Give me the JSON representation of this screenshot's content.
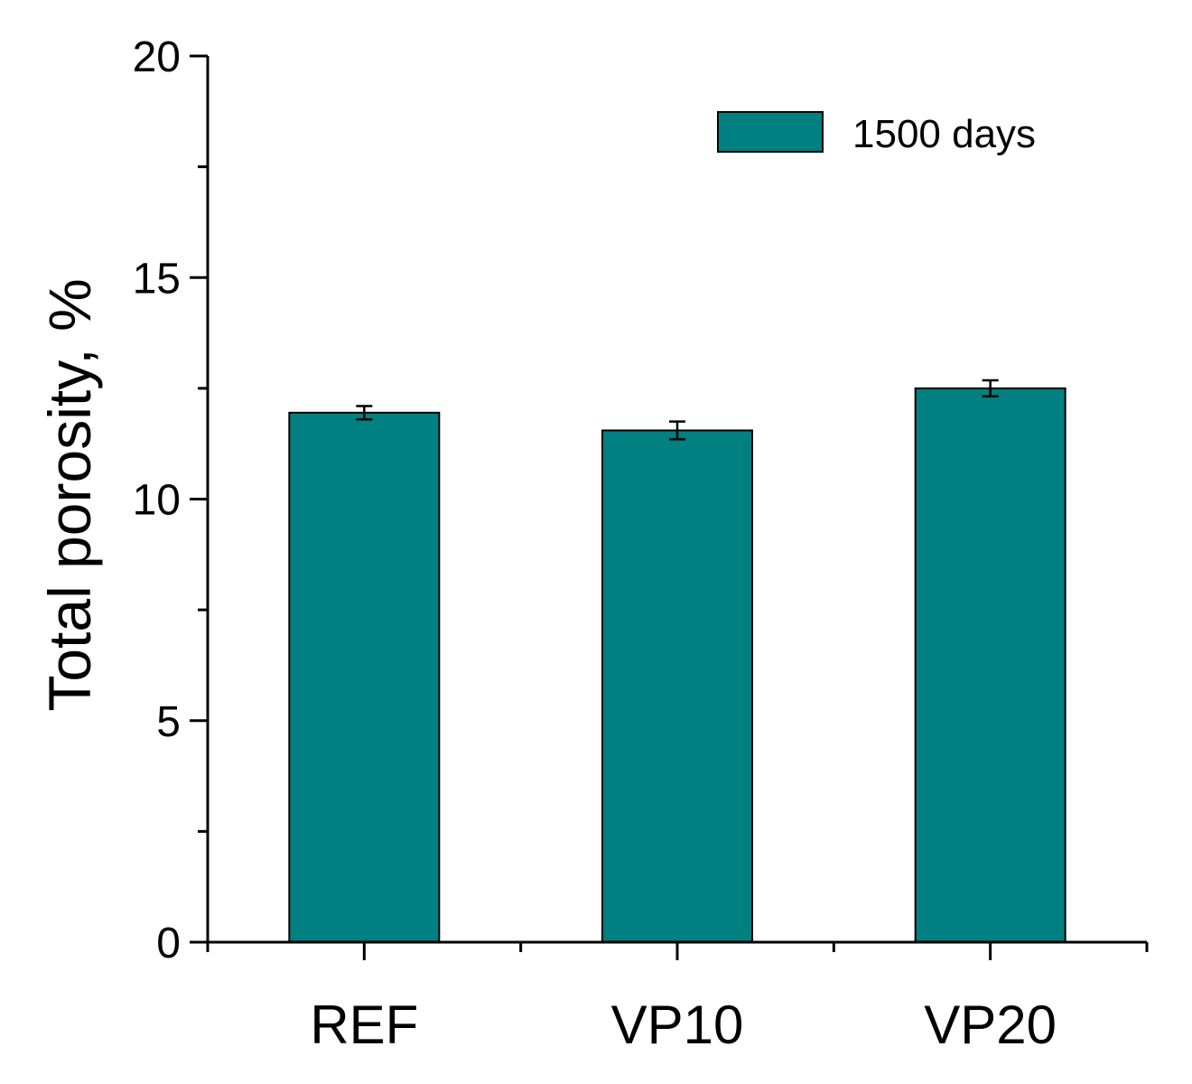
{
  "chart_data": {
    "type": "bar",
    "title": "",
    "xlabel": "",
    "ylabel": "Total porosity, %",
    "categories": [
      "REF",
      "VP10",
      "VP20"
    ],
    "series": [
      {
        "name": "1500 days",
        "values": [
          11.95,
          11.55,
          12.5
        ],
        "errors": [
          0.15,
          0.2,
          0.18
        ]
      }
    ],
    "ylim": [
      0,
      20
    ],
    "yticks": [
      0,
      5,
      10,
      15,
      20
    ],
    "yticks_minor": [
      2.5,
      7.5,
      12.5,
      17.5
    ],
    "grid": false,
    "legend_position": "top-right",
    "colors": {
      "bar_fill": "#008080",
      "bar_stroke": "#000000",
      "axis": "#000000"
    }
  }
}
